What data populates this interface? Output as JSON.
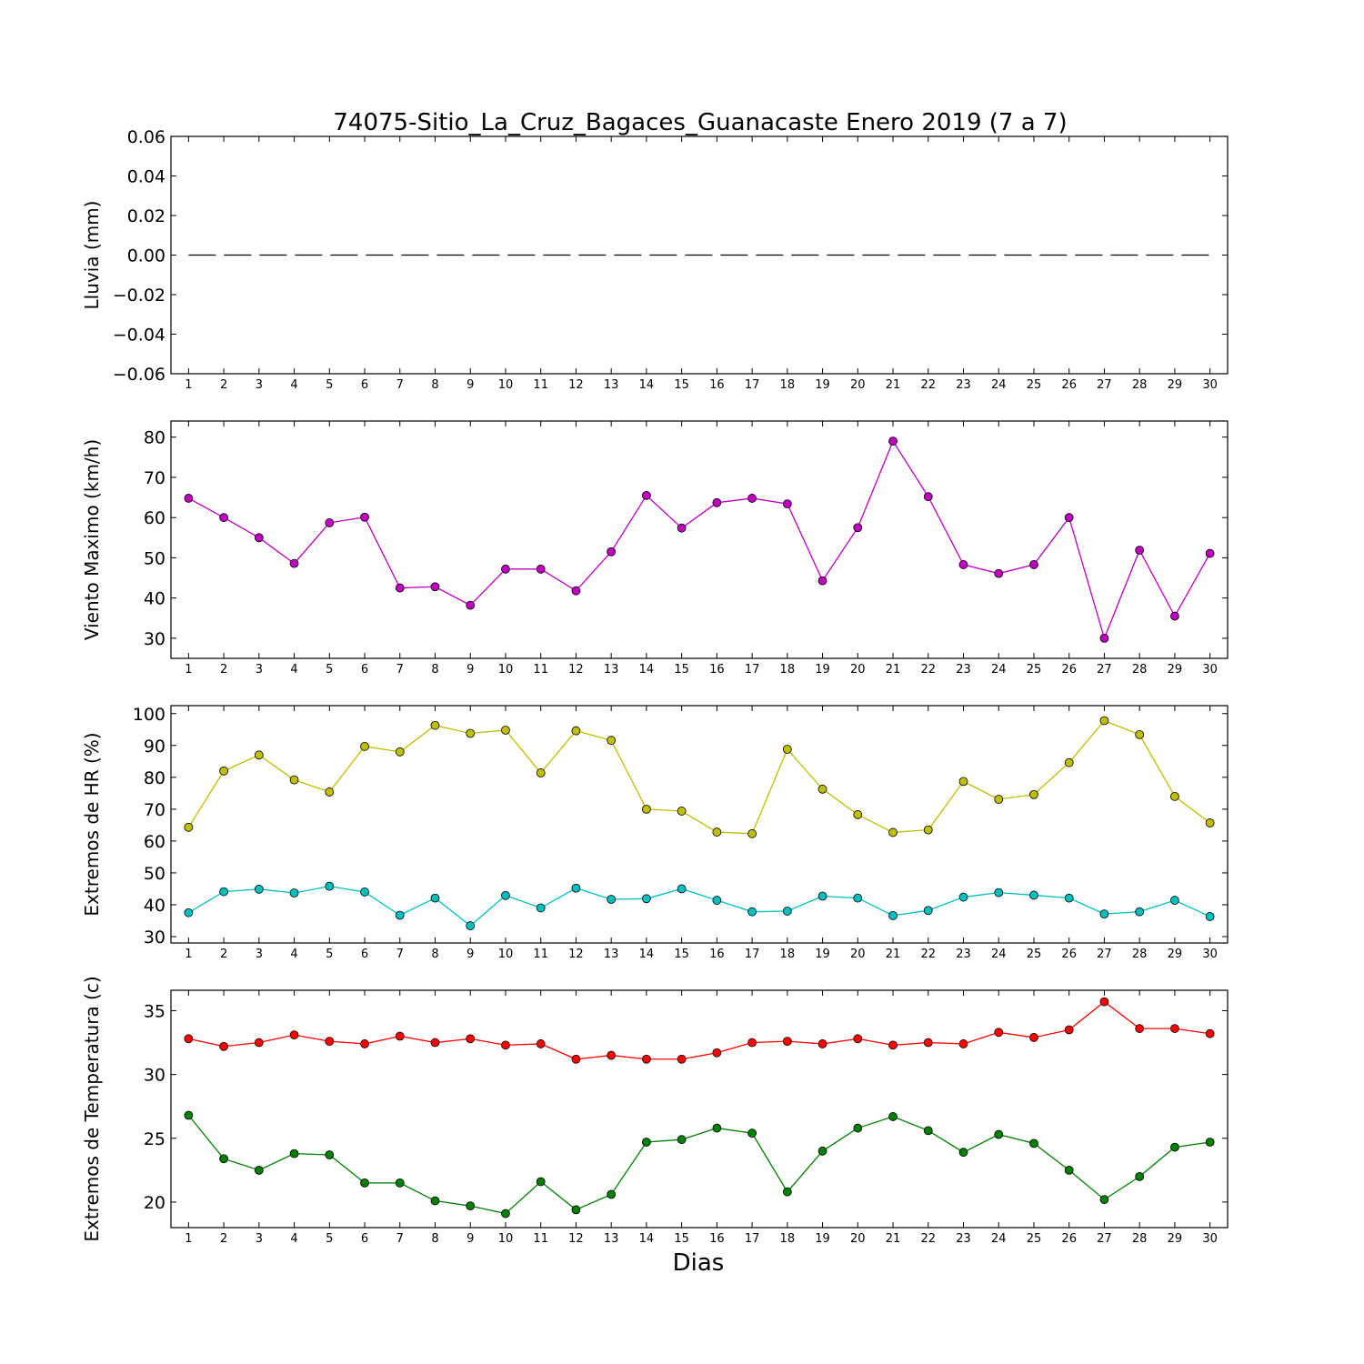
{
  "title": "74075-Sitio_La_Cruz_Bagaces_Guanacaste Enero 2019  (7 a 7)",
  "xlabel": "Dias",
  "chart_data": [
    {
      "type": "line",
      "ylabel": "Lluvia (mm)",
      "ylim": [
        -0.06,
        0.06
      ],
      "yticks": [
        -0.06,
        -0.04,
        -0.02,
        0.0,
        0.02,
        0.04,
        0.06
      ],
      "ytick_labels": [
        "−0.06",
        "−0.04",
        "−0.02",
        "0.00",
        "0.02",
        "0.04",
        "0.06"
      ],
      "x": [
        1,
        2,
        3,
        4,
        5,
        6,
        7,
        8,
        9,
        10,
        11,
        12,
        13,
        14,
        15,
        16,
        17,
        18,
        19,
        20,
        21,
        22,
        23,
        24,
        25,
        26,
        27,
        28,
        29,
        30
      ],
      "series": [
        {
          "color": "#000000",
          "style": "dashed",
          "marker": false,
          "values": [
            0,
            0,
            0,
            0,
            0,
            0,
            0,
            0,
            0,
            0,
            0,
            0,
            0,
            0,
            0,
            0,
            0,
            0,
            0,
            0,
            0,
            0,
            0,
            0,
            0,
            0,
            0,
            0,
            0,
            0
          ]
        }
      ]
    },
    {
      "type": "line",
      "ylabel": "Viento Maximo (km/h)",
      "ylim": [
        25,
        84
      ],
      "yticks": [
        30,
        40,
        50,
        60,
        70,
        80
      ],
      "ytick_labels": [
        "30",
        "40",
        "50",
        "60",
        "70",
        "80"
      ],
      "x": [
        1,
        2,
        3,
        4,
        5,
        6,
        7,
        8,
        9,
        10,
        11,
        12,
        13,
        14,
        15,
        16,
        17,
        18,
        19,
        20,
        21,
        22,
        23,
        24,
        25,
        26,
        27,
        28,
        29,
        30
      ],
      "series": [
        {
          "color": "#bf00bf",
          "style": "solid",
          "marker": true,
          "values": [
            64.8,
            60.0,
            55.0,
            48.6,
            58.7,
            60.1,
            42.5,
            42.8,
            38.2,
            47.2,
            47.2,
            41.8,
            51.5,
            65.5,
            57.4,
            63.7,
            64.8,
            63.4,
            44.3,
            57.5,
            79.0,
            65.2,
            48.3,
            46.1,
            48.3,
            60.0,
            30.0,
            51.9,
            35.5,
            51.1
          ]
        }
      ]
    },
    {
      "type": "line",
      "ylabel": "Extremos de HR (%)",
      "ylim": [
        28,
        102.5
      ],
      "yticks": [
        30,
        40,
        50,
        60,
        70,
        80,
        90,
        100
      ],
      "ytick_labels": [
        "30",
        "40",
        "50",
        "60",
        "70",
        "80",
        "90",
        "100"
      ],
      "x": [
        1,
        2,
        3,
        4,
        5,
        6,
        7,
        8,
        9,
        10,
        11,
        12,
        13,
        14,
        15,
        16,
        17,
        18,
        19,
        20,
        21,
        22,
        23,
        24,
        25,
        26,
        27,
        28,
        29,
        30
      ],
      "series": [
        {
          "color": "#bfbf00",
          "style": "solid",
          "marker": true,
          "values": [
            64.3,
            82.0,
            87.0,
            79.2,
            75.4,
            89.7,
            88.0,
            96.3,
            93.8,
            94.8,
            81.4,
            94.6,
            91.6,
            70.0,
            69.4,
            62.8,
            62.3,
            88.8,
            76.3,
            68.3,
            62.7,
            63.5,
            78.7,
            73.1,
            74.6,
            84.6,
            97.8,
            93.4,
            74.0,
            65.7
          ]
        },
        {
          "color": "#00bfbf",
          "style": "solid",
          "marker": true,
          "values": [
            37.5,
            44.1,
            44.9,
            43.7,
            45.8,
            44.0,
            36.7,
            42.1,
            33.4,
            42.9,
            39.0,
            45.2,
            41.7,
            41.9,
            45.0,
            41.4,
            37.8,
            38.0,
            42.7,
            42.1,
            36.6,
            38.2,
            42.4,
            43.8,
            43.0,
            42.1,
            37.1,
            37.8,
            41.4,
            36.3
          ]
        }
      ]
    },
    {
      "type": "line",
      "ylabel": "Extremos de Temperatura (c)",
      "ylim": [
        18.0,
        36.6
      ],
      "yticks": [
        20,
        25,
        30,
        35
      ],
      "ytick_labels": [
        "20",
        "25",
        "30",
        "35"
      ],
      "x": [
        1,
        2,
        3,
        4,
        5,
        6,
        7,
        8,
        9,
        10,
        11,
        12,
        13,
        14,
        15,
        16,
        17,
        18,
        19,
        20,
        21,
        22,
        23,
        24,
        25,
        26,
        27,
        28,
        29,
        30
      ],
      "series": [
        {
          "color": "#ff0000",
          "style": "solid",
          "marker": true,
          "values": [
            32.8,
            32.2,
            32.5,
            33.1,
            32.6,
            32.4,
            33.0,
            32.5,
            32.8,
            32.3,
            32.4,
            31.2,
            31.5,
            31.2,
            31.2,
            31.7,
            32.5,
            32.6,
            32.4,
            32.8,
            32.3,
            32.5,
            32.4,
            33.3,
            32.9,
            33.5,
            35.7,
            33.6,
            33.6,
            33.2
          ]
        },
        {
          "color": "#007f00",
          "style": "solid",
          "marker": true,
          "values": [
            26.8,
            23.4,
            22.5,
            23.8,
            23.7,
            21.5,
            21.5,
            20.1,
            19.7,
            19.1,
            21.6,
            19.4,
            20.6,
            24.7,
            24.9,
            25.8,
            25.4,
            20.8,
            24.0,
            25.8,
            26.7,
            25.6,
            23.9,
            25.3,
            24.6,
            22.5,
            20.2,
            22.0,
            24.3,
            24.7
          ]
        }
      ]
    }
  ]
}
